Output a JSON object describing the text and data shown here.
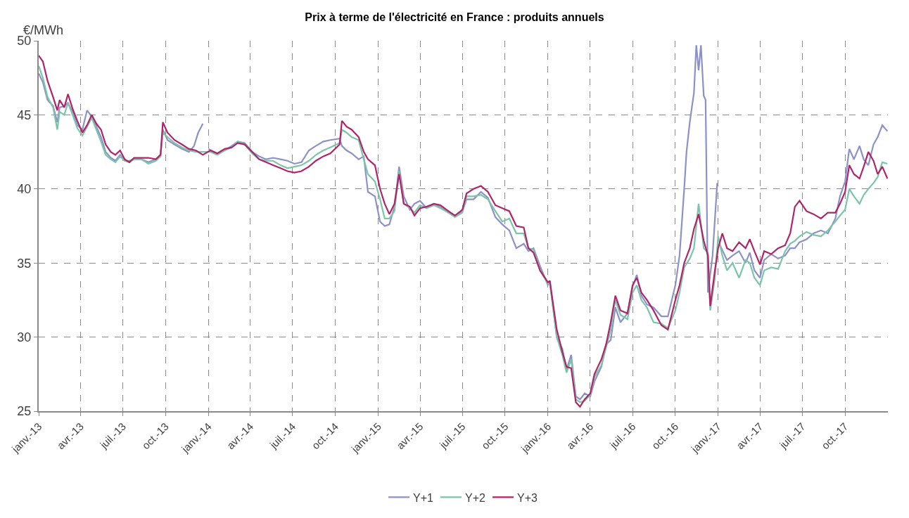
{
  "chart_data": {
    "type": "line",
    "title": "Prix à terme de l'électricité en France : produits annuels",
    "ylabel": "€/MWh",
    "xlim": [
      "2013-01-01",
      "2018-01-01"
    ],
    "xticks": [
      {
        "value": "2013-01-01",
        "label": "janv.-13"
      },
      {
        "value": "2013-04-01",
        "label": "avr.-13"
      },
      {
        "value": "2013-07-01",
        "label": "juil.-13"
      },
      {
        "value": "2013-10-01",
        "label": "oct.-13"
      },
      {
        "value": "2014-01-01",
        "label": "janv.-14"
      },
      {
        "value": "2014-04-01",
        "label": "avr.-14"
      },
      {
        "value": "2014-07-01",
        "label": "juil.-14"
      },
      {
        "value": "2014-10-01",
        "label": "oct.-14"
      },
      {
        "value": "2015-01-01",
        "label": "janv.-15"
      },
      {
        "value": "2015-04-01",
        "label": "avr.-15"
      },
      {
        "value": "2015-07-01",
        "label": "juil.-15"
      },
      {
        "value": "2015-10-01",
        "label": "oct.-15"
      },
      {
        "value": "2016-01-01",
        "label": "janv.-16"
      },
      {
        "value": "2016-04-01",
        "label": "avr.-16"
      },
      {
        "value": "2016-07-01",
        "label": "juil.-16"
      },
      {
        "value": "2016-10-01",
        "label": "oct.-16"
      },
      {
        "value": "2017-01-01",
        "label": "janv.-17"
      },
      {
        "value": "2017-04-01",
        "label": "avr.-17"
      },
      {
        "value": "2017-07-01",
        "label": "juil.-17"
      },
      {
        "value": "2017-10-01",
        "label": "oct.-17"
      }
    ],
    "ylim": [
      25,
      50
    ],
    "yticks": [
      25,
      30,
      35,
      40,
      45,
      50
    ],
    "grid": true,
    "legend": "bottom",
    "marker": "none",
    "line_style": "solid",
    "series": [
      {
        "name": "Y+1",
        "color": "#8c92c8",
        "x": [
          "2013-01-01",
          "2013-01-10",
          "2013-01-20",
          "2013-02-01",
          "2013-02-10",
          "2013-02-15",
          "2013-02-25",
          "2013-03-05",
          "2013-03-15",
          "2013-03-25",
          "2013-04-05",
          "2013-04-15",
          "2013-04-25",
          "2013-05-05",
          "2013-05-15",
          "2013-05-25",
          "2013-06-05",
          "2013-06-15",
          "2013-06-25",
          "2013-07-05",
          "2013-07-15",
          "2013-07-25",
          "2013-08-10",
          "2013-08-25",
          "2013-09-10",
          "2013-09-20",
          "2013-09-25",
          "2013-10-05",
          "2013-10-20",
          "2013-11-05",
          "2013-11-20",
          "2013-12-01",
          "2013-12-10",
          "2013-12-20",
          "2013-12-25",
          "2014-01-01",
          "2014-01-20",
          "2014-02-05",
          "2014-02-20",
          "2014-03-05",
          "2014-03-20",
          "2014-04-05",
          "2014-04-20",
          "2014-05-05",
          "2014-05-20",
          "2014-06-05",
          "2014-06-20",
          "2014-07-05",
          "2014-07-20",
          "2014-08-05",
          "2014-08-20",
          "2014-09-05",
          "2014-09-20",
          "2014-10-10",
          "2014-10-15",
          "2014-10-25",
          "2014-11-05",
          "2014-11-20",
          "2014-12-01",
          "2014-12-10",
          "2014-12-25",
          "2015-01-05",
          "2015-01-15",
          "2015-01-25",
          "2015-02-05",
          "2015-02-15",
          "2015-02-25",
          "2015-03-10",
          "2015-03-20",
          "2015-04-01",
          "2015-04-15",
          "2015-05-01",
          "2015-05-15",
          "2015-06-01",
          "2015-06-15",
          "2015-07-01",
          "2015-07-10",
          "2015-07-25",
          "2015-08-10",
          "2015-08-25",
          "2015-09-10",
          "2015-09-25",
          "2015-10-10",
          "2015-10-25",
          "2015-11-10",
          "2015-11-20",
          "2015-12-01",
          "2015-12-15",
          "2016-01-01",
          "2016-01-05",
          "2016-01-20",
          "2016-02-01",
          "2016-02-10",
          "2016-02-20",
          "2016-03-01",
          "2016-03-10",
          "2016-03-20",
          "2016-04-01",
          "2016-04-10",
          "2016-04-25",
          "2016-05-05",
          "2016-05-15",
          "2016-05-25",
          "2016-06-05",
          "2016-06-20",
          "2016-07-01",
          "2016-07-10",
          "2016-07-20",
          "2016-08-01",
          "2016-08-15",
          "2016-09-01",
          "2016-09-15",
          "2016-10-01",
          "2016-10-10",
          "2016-10-20",
          "2016-10-25",
          "2016-11-01",
          "2016-11-10",
          "2016-11-15",
          "2016-11-20",
          "2016-11-25",
          "2016-12-01",
          "2016-12-05",
          "2016-12-10",
          "2016-12-20",
          "2016-12-30",
          "2017-01-01",
          "2017-01-05",
          "2017-01-20",
          "2017-02-01",
          "2017-02-15",
          "2017-03-01",
          "2017-03-10",
          "2017-03-20",
          "2017-04-01",
          "2017-04-10",
          "2017-04-25",
          "2017-05-10",
          "2017-05-25",
          "2017-06-05",
          "2017-06-15",
          "2017-06-25",
          "2017-07-10",
          "2017-07-25",
          "2017-08-10",
          "2017-08-25",
          "2017-09-10",
          "2017-09-20",
          "2017-10-01",
          "2017-10-10",
          "2017-10-20",
          "2017-11-01",
          "2017-11-10",
          "2017-11-20",
          "2017-12-01",
          "2017-12-10",
          "2017-12-20",
          "2017-12-31"
        ],
        "values": [
          47.8,
          47.2,
          46.0,
          45.6,
          44.5,
          45.5,
          45.6,
          45.8,
          45.2,
          44.3,
          44.0,
          45.3,
          44.9,
          44.2,
          43.5,
          42.5,
          42.1,
          41.9,
          42.3,
          41.9,
          41.9,
          42.0,
          42.0,
          41.8,
          42.0,
          42.3,
          44.0,
          43.3,
          43.0,
          42.7,
          42.5,
          42.9,
          43.8,
          44.4,
          null,
          42.7,
          42.4,
          42.6,
          42.9,
          43.2,
          43.1,
          42.5,
          42.2,
          42.0,
          42.1,
          42.0,
          41.9,
          41.7,
          41.8,
          42.6,
          42.9,
          43.2,
          43.3,
          43.4,
          42.9,
          42.6,
          42.4,
          42.0,
          42.2,
          39.8,
          39.5,
          37.8,
          37.5,
          37.6,
          38.8,
          41.5,
          39.5,
          38.6,
          39.0,
          39.2,
          38.7,
          39.0,
          38.8,
          38.4,
          38.2,
          38.5,
          39.3,
          39.3,
          39.8,
          39.4,
          38.1,
          37.6,
          37.2,
          36.0,
          36.3,
          35.8,
          36.0,
          34.8,
          33.5,
          33.8,
          30.0,
          29.2,
          27.8,
          28.8,
          26.0,
          25.8,
          26.2,
          26.0,
          27.0,
          28.0,
          29.5,
          29.8,
          32.0,
          31.0,
          31.6,
          33.4,
          34.2,
          32.8,
          32.2,
          32.0,
          31.4,
          31.4,
          33.5,
          35.5,
          40.0,
          42.5,
          44.5,
          46.5,
          49.7,
          48.0,
          49.7,
          46.3,
          46.0,
          33.0,
          35.5,
          40.4,
          null,
          36.2,
          35.2,
          35.5,
          35.8,
          35.0,
          35.7,
          34.5,
          34.0,
          35.2,
          35.6,
          35.3,
          35.5,
          36.0,
          36.0,
          36.4,
          36.6,
          37.0,
          37.2,
          37.0,
          38.0,
          39.5,
          40.5,
          42.7,
          42.0,
          42.9,
          42.0,
          41.6,
          43.0,
          43.5,
          44.3,
          43.9
        ]
      },
      {
        "name": "Y+2",
        "color": "#7cc5a8",
        "x": [
          "2013-01-01",
          "2013-01-10",
          "2013-01-20",
          "2013-02-01",
          "2013-02-10",
          "2013-02-15",
          "2013-02-25",
          "2013-03-05",
          "2013-03-15",
          "2013-03-25",
          "2013-04-05",
          "2013-04-15",
          "2013-04-25",
          "2013-05-05",
          "2013-05-15",
          "2013-05-25",
          "2013-06-05",
          "2013-06-15",
          "2013-06-25",
          "2013-07-05",
          "2013-07-15",
          "2013-07-25",
          "2013-08-10",
          "2013-08-25",
          "2013-09-10",
          "2013-09-20",
          "2013-09-25",
          "2013-10-05",
          "2013-10-20",
          "2013-11-05",
          "2013-11-20",
          "2013-12-05",
          "2013-12-20",
          "2014-01-05",
          "2014-01-20",
          "2014-02-05",
          "2014-02-20",
          "2014-03-05",
          "2014-03-20",
          "2014-04-05",
          "2014-04-20",
          "2014-05-05",
          "2014-05-20",
          "2014-06-05",
          "2014-06-20",
          "2014-07-05",
          "2014-07-20",
          "2014-08-05",
          "2014-08-20",
          "2014-09-05",
          "2014-09-20",
          "2014-10-10",
          "2014-10-15",
          "2014-10-25",
          "2014-11-05",
          "2014-11-20",
          "2014-12-01",
          "2014-12-10",
          "2014-12-25",
          "2015-01-05",
          "2015-01-15",
          "2015-01-25",
          "2015-02-05",
          "2015-02-15",
          "2015-02-25",
          "2015-03-10",
          "2015-03-20",
          "2015-04-01",
          "2015-04-15",
          "2015-05-01",
          "2015-05-15",
          "2015-06-01",
          "2015-06-15",
          "2015-07-01",
          "2015-07-10",
          "2015-07-25",
          "2015-08-10",
          "2015-08-25",
          "2015-09-10",
          "2015-09-25",
          "2015-10-10",
          "2015-10-25",
          "2015-11-10",
          "2015-11-20",
          "2015-12-01",
          "2015-12-15",
          "2016-01-01",
          "2016-01-05",
          "2016-01-20",
          "2016-02-01",
          "2016-02-10",
          "2016-02-20",
          "2016-03-01",
          "2016-03-10",
          "2016-03-20",
          "2016-04-01",
          "2016-04-10",
          "2016-04-25",
          "2016-05-05",
          "2016-05-15",
          "2016-05-25",
          "2016-06-05",
          "2016-06-20",
          "2016-07-01",
          "2016-07-10",
          "2016-07-20",
          "2016-08-01",
          "2016-08-15",
          "2016-09-01",
          "2016-09-15",
          "2016-10-01",
          "2016-10-10",
          "2016-10-20",
          "2016-11-01",
          "2016-11-10",
          "2016-11-20",
          "2016-12-01",
          "2016-12-10",
          "2016-12-15",
          "2016-12-25",
          "2017-01-01",
          "2017-01-10",
          "2017-01-20",
          "2017-02-01",
          "2017-02-15",
          "2017-03-01",
          "2017-03-10",
          "2017-03-20",
          "2017-04-01",
          "2017-04-10",
          "2017-04-25",
          "2017-05-10",
          "2017-05-25",
          "2017-06-05",
          "2017-06-15",
          "2017-06-25",
          "2017-07-10",
          "2017-07-25",
          "2017-08-10",
          "2017-08-25",
          "2017-09-10",
          "2017-09-20",
          "2017-10-01",
          "2017-10-10",
          "2017-10-20",
          "2017-11-01",
          "2017-11-10",
          "2017-11-20",
          "2017-12-01",
          "2017-12-10",
          "2017-12-20",
          "2017-12-31"
        ],
        "values": [
          48.3,
          47.5,
          46.2,
          45.5,
          44.0,
          45.2,
          45.0,
          45.8,
          45.0,
          44.1,
          43.6,
          44.2,
          44.8,
          44.0,
          43.2,
          42.3,
          42.0,
          41.8,
          42.2,
          41.9,
          41.8,
          42.0,
          42.0,
          41.7,
          41.9,
          42.2,
          43.8,
          43.5,
          43.1,
          42.8,
          42.6,
          42.5,
          42.5,
          42.5,
          42.3,
          42.6,
          42.8,
          43.2,
          43.0,
          42.4,
          42.0,
          41.9,
          41.9,
          41.6,
          41.4,
          41.5,
          41.6,
          41.9,
          42.3,
          42.6,
          42.8,
          43.1,
          44.0,
          43.8,
          43.5,
          43.3,
          42.0,
          41.0,
          40.5,
          39.3,
          38.0,
          38.0,
          38.5,
          41.2,
          39.0,
          38.7,
          38.4,
          38.9,
          38.7,
          38.9,
          38.7,
          38.4,
          38.1,
          38.4,
          39.5,
          39.5,
          39.6,
          39.3,
          38.5,
          37.8,
          38.0,
          37.0,
          37.0,
          36.0,
          35.9,
          34.5,
          33.6,
          33.7,
          30.0,
          28.8,
          27.6,
          28.5,
          25.8,
          25.6,
          25.7,
          26.1,
          27.3,
          28.1,
          29.3,
          30.5,
          32.5,
          31.5,
          31.2,
          33.0,
          33.5,
          32.5,
          32.0,
          31.0,
          30.9,
          30.6,
          31.8,
          33.0,
          34.7,
          35.3,
          36.0,
          39.0,
          36.0,
          35.7,
          31.8,
          34.0,
          36.8,
          35.5,
          34.5,
          35.0,
          34.0,
          35.2,
          35.0,
          34.0,
          33.5,
          34.5,
          34.7,
          34.6,
          35.8,
          36.3,
          36.5,
          36.8,
          37.1,
          36.9,
          36.8,
          37.2,
          37.8,
          38.2,
          38.6,
          40.0,
          39.5,
          39.0,
          39.6,
          40.0,
          40.4,
          40.8,
          41.8,
          41.7
        ]
      },
      {
        "name": "Y+3",
        "color": "#b0256a",
        "x": [
          "2013-01-01",
          "2013-01-10",
          "2013-01-20",
          "2013-02-01",
          "2013-02-10",
          "2013-02-15",
          "2013-02-25",
          "2013-03-05",
          "2013-03-15",
          "2013-03-25",
          "2013-04-05",
          "2013-04-15",
          "2013-04-25",
          "2013-05-05",
          "2013-05-15",
          "2013-05-25",
          "2013-06-05",
          "2013-06-15",
          "2013-06-25",
          "2013-07-05",
          "2013-07-15",
          "2013-07-25",
          "2013-08-10",
          "2013-08-25",
          "2013-09-10",
          "2013-09-20",
          "2013-09-25",
          "2013-10-05",
          "2013-10-20",
          "2013-11-05",
          "2013-11-20",
          "2013-12-05",
          "2013-12-20",
          "2014-01-05",
          "2014-01-20",
          "2014-02-05",
          "2014-02-20",
          "2014-03-05",
          "2014-03-20",
          "2014-04-05",
          "2014-04-20",
          "2014-05-05",
          "2014-05-20",
          "2014-06-05",
          "2014-06-20",
          "2014-07-05",
          "2014-07-20",
          "2014-08-05",
          "2014-08-20",
          "2014-09-05",
          "2014-09-20",
          "2014-10-10",
          "2014-10-15",
          "2014-10-25",
          "2014-11-05",
          "2014-11-20",
          "2014-12-01",
          "2014-12-10",
          "2014-12-25",
          "2015-01-05",
          "2015-01-15",
          "2015-01-25",
          "2015-02-05",
          "2015-02-15",
          "2015-02-25",
          "2015-03-10",
          "2015-03-20",
          "2015-04-01",
          "2015-04-15",
          "2015-05-01",
          "2015-05-15",
          "2015-06-01",
          "2015-06-15",
          "2015-07-01",
          "2015-07-10",
          "2015-07-25",
          "2015-08-10",
          "2015-08-25",
          "2015-09-10",
          "2015-09-25",
          "2015-10-10",
          "2015-10-25",
          "2015-11-10",
          "2015-11-20",
          "2015-12-01",
          "2015-12-15",
          "2016-01-01",
          "2016-01-05",
          "2016-01-20",
          "2016-02-01",
          "2016-02-10",
          "2016-02-20",
          "2016-03-01",
          "2016-03-10",
          "2016-03-20",
          "2016-04-01",
          "2016-04-10",
          "2016-04-25",
          "2016-05-05",
          "2016-05-15",
          "2016-05-25",
          "2016-06-05",
          "2016-06-20",
          "2016-07-01",
          "2016-07-10",
          "2016-07-20",
          "2016-08-01",
          "2016-08-15",
          "2016-09-01",
          "2016-09-15",
          "2016-10-01",
          "2016-10-10",
          "2016-10-20",
          "2016-11-01",
          "2016-11-10",
          "2016-11-20",
          "2016-12-01",
          "2016-12-10",
          "2016-12-15",
          "2016-12-25",
          "2017-01-01",
          "2017-01-10",
          "2017-01-20",
          "2017-02-01",
          "2017-02-15",
          "2017-03-01",
          "2017-03-10",
          "2017-03-20",
          "2017-04-01",
          "2017-04-10",
          "2017-04-25",
          "2017-05-10",
          "2017-05-25",
          "2017-06-05",
          "2017-06-15",
          "2017-06-25",
          "2017-07-10",
          "2017-07-25",
          "2017-08-10",
          "2017-08-25",
          "2017-09-10",
          "2017-09-20",
          "2017-10-01",
          "2017-10-10",
          "2017-10-20",
          "2017-11-01",
          "2017-11-10",
          "2017-11-20",
          "2017-12-01",
          "2017-12-10",
          "2017-12-20",
          "2017-12-31"
        ],
        "values": [
          49.0,
          48.6,
          47.3,
          46.2,
          45.3,
          46.0,
          45.5,
          46.4,
          45.4,
          44.6,
          43.8,
          44.3,
          45.0,
          44.4,
          44.0,
          43.0,
          42.5,
          42.3,
          42.6,
          42.0,
          41.8,
          42.1,
          42.1,
          42.1,
          42.0,
          42.3,
          44.5,
          43.8,
          43.3,
          43.0,
          42.7,
          42.6,
          42.3,
          42.6,
          42.4,
          42.7,
          42.8,
          43.1,
          43.0,
          42.5,
          42.0,
          41.8,
          41.6,
          41.4,
          41.2,
          41.1,
          41.2,
          41.5,
          41.9,
          42.2,
          42.4,
          43.0,
          44.6,
          44.2,
          44.0,
          43.5,
          42.5,
          42.0,
          41.6,
          40.0,
          39.0,
          38.3,
          39.0,
          41.0,
          39.0,
          38.8,
          38.2,
          38.7,
          38.8,
          39.0,
          38.9,
          38.5,
          38.2,
          38.6,
          39.7,
          40.0,
          40.2,
          39.8,
          38.9,
          38.7,
          38.5,
          37.5,
          37.4,
          36.0,
          35.7,
          34.5,
          33.7,
          33.8,
          30.5,
          29.0,
          28.0,
          27.9,
          25.6,
          25.3,
          25.8,
          26.2,
          27.5,
          28.5,
          29.5,
          31.0,
          32.8,
          31.8,
          31.6,
          33.5,
          34.0,
          33.0,
          32.5,
          31.8,
          30.8,
          30.5,
          32.5,
          33.5,
          35.0,
          36.0,
          37.3,
          38.3,
          36.5,
          35.5,
          32.1,
          34.5,
          36.0,
          37.0,
          36.0,
          35.8,
          36.4,
          36.0,
          36.6,
          35.8,
          34.9,
          35.8,
          35.6,
          36.0,
          36.2,
          37.0,
          38.8,
          39.2,
          38.5,
          38.3,
          38.0,
          38.4,
          38.4,
          39.0,
          39.8,
          41.6,
          41.0,
          40.7,
          41.5,
          42.5,
          41.9,
          41.0,
          41.5,
          40.7
        ]
      }
    ]
  }
}
